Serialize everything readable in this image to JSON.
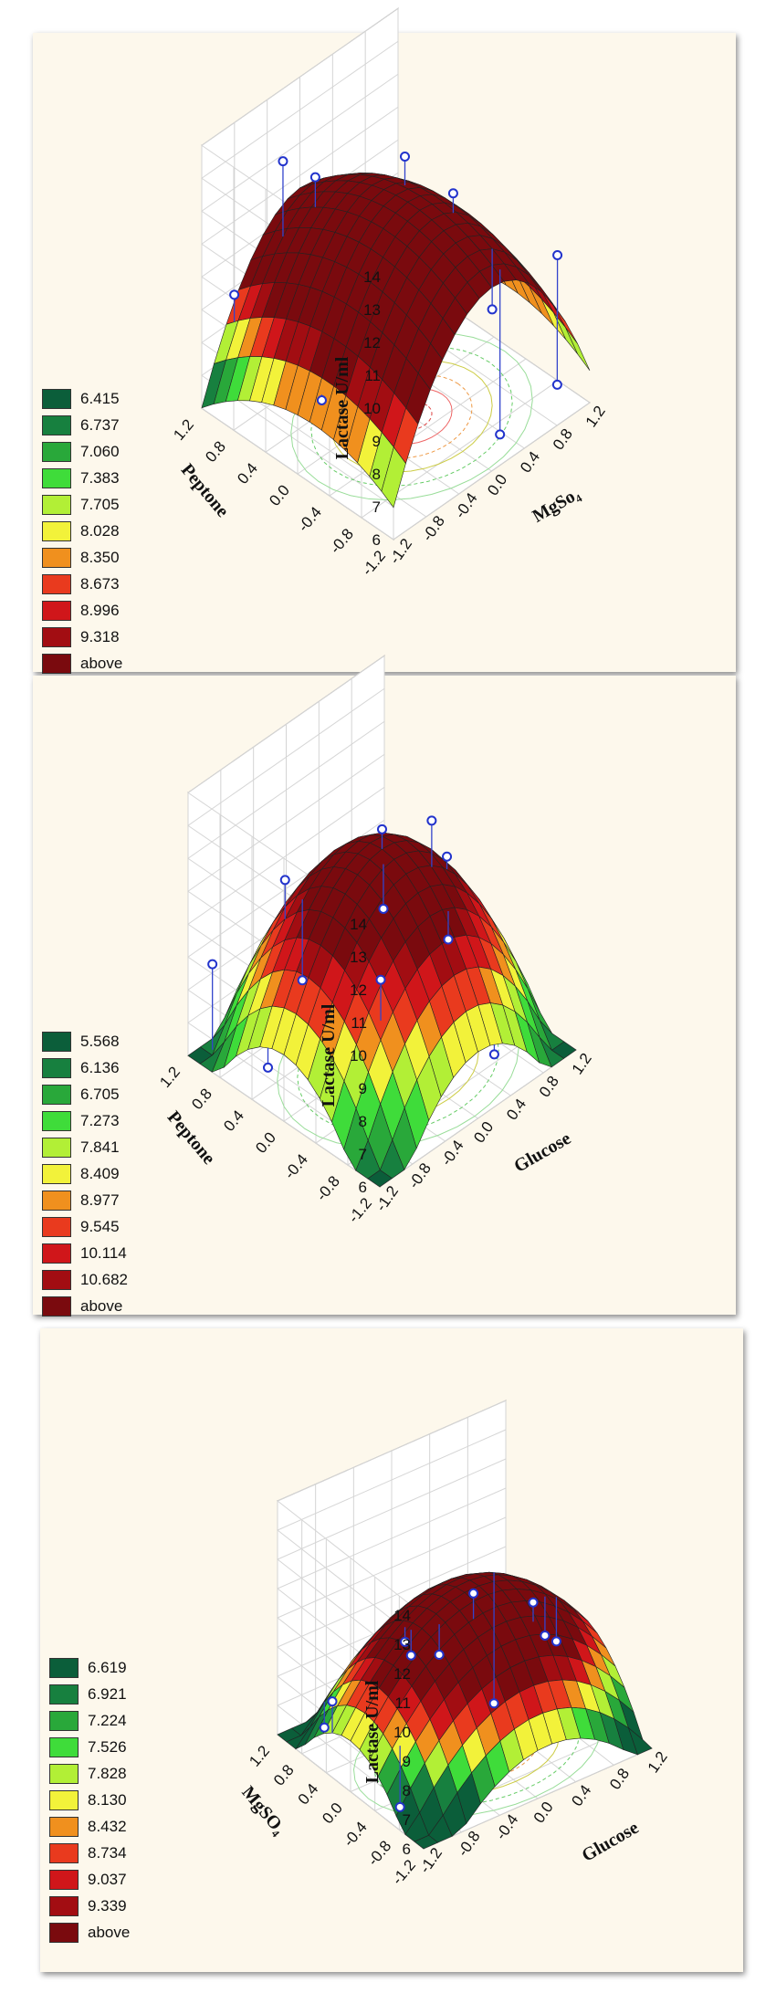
{
  "chart_data": [
    {
      "type": "surface",
      "zlabel": "Lactase U/ml",
      "xlabel": "MgSo₄",
      "ylabel": "Peptone",
      "z_ticks": [
        "6",
        "7",
        "8",
        "9",
        "10",
        "11",
        "12",
        "13",
        "14"
      ],
      "x_ticks": [
        "-1.2",
        "-0.8",
        "-0.4",
        "0.0",
        "0.4",
        "0.8",
        "1.2"
      ],
      "y_ticks": [
        "-1.2",
        "-0.8",
        "-0.4",
        "0.0",
        "0.4",
        "0.8",
        "1.2"
      ],
      "legend": [
        "6.415",
        "6.737",
        "7.060",
        "7.383",
        "7.705",
        "8.028",
        "8.350",
        "8.673",
        "8.996",
        "9.318",
        "above"
      ]
    },
    {
      "type": "surface",
      "zlabel": "Lactase U/ml",
      "xlabel": "Glucose",
      "ylabel": "Peptone",
      "z_ticks": [
        "6",
        "7",
        "8",
        "9",
        "10",
        "11",
        "12",
        "13",
        "14"
      ],
      "x_ticks": [
        "-1.2",
        "-0.8",
        "-0.4",
        "0.0",
        "0.4",
        "0.8",
        "1.2"
      ],
      "y_ticks": [
        "-1.2",
        "-0.8",
        "-0.4",
        "0.0",
        "0.4",
        "0.8",
        "1.2"
      ],
      "legend": [
        "5.568",
        "6.136",
        "6.705",
        "7.273",
        "7.841",
        "8.409",
        "8.977",
        "9.545",
        "10.114",
        "10.682",
        "above"
      ]
    },
    {
      "type": "surface",
      "zlabel": "Lactase U/ml",
      "xlabel": "Glucose",
      "ylabel": "MgSO₄",
      "z_ticks": [
        "6",
        "7",
        "8",
        "9",
        "10",
        "11",
        "12",
        "13",
        "14"
      ],
      "x_ticks": [
        "-1.2",
        "-0.8",
        "-0.4",
        "0.0",
        "0.4",
        "0.8",
        "1.2"
      ],
      "y_ticks": [
        "-1.2",
        "-0.8",
        "-0.4",
        "0.0",
        "0.4",
        "0.8",
        "1.2"
      ],
      "legend": [
        "6.619",
        "6.921",
        "7.224",
        "7.526",
        "7.828",
        "8.130",
        "8.432",
        "8.734",
        "9.037",
        "9.339",
        "above"
      ]
    }
  ],
  "palette": [
    "#0b5e3a",
    "#17803f",
    "#29a83a",
    "#3fdc3a",
    "#b2ef36",
    "#f2f23a",
    "#f0901e",
    "#e93a1e",
    "#d0161a",
    "#a20d12",
    "#7a0a0e"
  ]
}
